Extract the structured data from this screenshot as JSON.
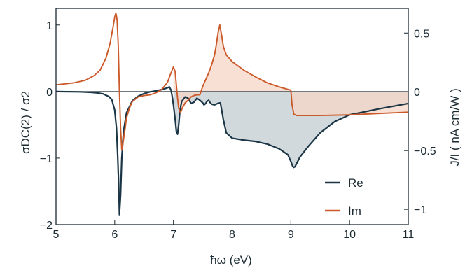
{
  "chart_data": {
    "type": "line",
    "xlabel": "ħω (eV)",
    "ylabel_left": "σDC(2) / σ2",
    "ylabel_right": "J/I ( nA cm/W )",
    "xlim": [
      5,
      11
    ],
    "ylim_left": [
      -2,
      1.25
    ],
    "ylim_right": [
      -1.13,
      0.71
    ],
    "x_ticks": [
      "5",
      "6",
      "7",
      "8",
      "9",
      "10",
      "11"
    ],
    "y_ticks_left": [
      "−2",
      "−1",
      "0",
      "1"
    ],
    "y_ticks_right": [
      "−1",
      "−0.5",
      "0",
      "0.5"
    ],
    "grid": false,
    "legend_position": "bottom-right",
    "zero_line": true,
    "fill_to_zero": "from x = 7.0 eV onward",
    "series": [
      {
        "name": "Re",
        "color": "#1a3545",
        "fill": "#c3ccd1",
        "x": [
          5.0,
          5.4,
          5.6,
          5.7,
          5.8,
          5.9,
          5.95,
          6.0,
          6.03,
          6.05,
          6.07,
          6.08,
          6.1,
          6.12,
          6.15,
          6.2,
          6.3,
          6.4,
          6.5,
          6.6,
          6.7,
          6.8,
          6.88,
          6.93,
          6.96,
          6.98,
          7.0,
          7.03,
          7.05,
          7.07,
          7.09,
          7.11,
          7.14,
          7.2,
          7.25,
          7.3,
          7.35,
          7.4,
          7.45,
          7.5,
          7.52,
          7.55,
          7.57,
          7.6,
          7.62,
          7.65,
          7.7,
          7.75,
          7.8,
          7.85,
          7.9,
          8.0,
          8.2,
          8.4,
          8.6,
          8.8,
          8.95,
          9.0,
          9.03,
          9.05,
          9.07,
          9.1,
          9.15,
          9.3,
          9.5,
          9.75,
          10.0,
          10.5,
          11.0
        ],
        "y": [
          0.0,
          -0.005,
          -0.012,
          -0.02,
          -0.035,
          -0.075,
          -0.12,
          -0.28,
          -0.55,
          -0.95,
          -1.45,
          -1.85,
          -1.55,
          -1.0,
          -0.6,
          -0.32,
          -0.14,
          -0.07,
          -0.03,
          -0.005,
          0.01,
          0.03,
          0.05,
          0.07,
          0.02,
          -0.08,
          -0.2,
          -0.42,
          -0.6,
          -0.64,
          -0.5,
          -0.3,
          -0.15,
          -0.08,
          -0.1,
          -0.18,
          -0.16,
          -0.1,
          -0.13,
          -0.17,
          -0.2,
          -0.18,
          -0.15,
          -0.13,
          -0.16,
          -0.19,
          -0.2,
          -0.18,
          -0.17,
          -0.42,
          -0.62,
          -0.7,
          -0.73,
          -0.75,
          -0.79,
          -0.86,
          -0.95,
          -1.05,
          -1.12,
          -1.14,
          -1.13,
          -1.08,
          -0.99,
          -0.82,
          -0.62,
          -0.45,
          -0.35,
          -0.26,
          -0.18
        ]
      },
      {
        "name": "Im",
        "color": "#cb5a2a",
        "fill": "#f6d5c7",
        "x": [
          5.0,
          5.3,
          5.5,
          5.65,
          5.75,
          5.85,
          5.92,
          5.97,
          6.0,
          6.02,
          6.04,
          6.06,
          6.08,
          6.1,
          6.12,
          6.14,
          6.17,
          6.2,
          6.25,
          6.3,
          6.4,
          6.5,
          6.6,
          6.7,
          6.8,
          6.9,
          6.95,
          7.0,
          7.03,
          7.05,
          7.07,
          7.09,
          7.12,
          7.15,
          7.2,
          7.25,
          7.3,
          7.35,
          7.4,
          7.45,
          7.5,
          7.55,
          7.6,
          7.65,
          7.7,
          7.73,
          7.76,
          7.79,
          7.82,
          7.85,
          7.9,
          8.0,
          8.2,
          8.4,
          8.6,
          8.8,
          9.0,
          9.02,
          9.05,
          9.1,
          9.5,
          10.0,
          10.5,
          11.0
        ],
        "y": [
          0.1,
          0.13,
          0.17,
          0.24,
          0.32,
          0.5,
          0.72,
          0.96,
          1.12,
          1.18,
          1.08,
          0.7,
          0.0,
          -0.55,
          -0.88,
          -0.78,
          -0.6,
          -0.4,
          -0.25,
          -0.15,
          -0.08,
          -0.06,
          -0.05,
          -0.02,
          0.03,
          0.14,
          0.26,
          0.37,
          0.3,
          0.1,
          -0.1,
          -0.25,
          -0.32,
          -0.25,
          -0.17,
          -0.13,
          -0.08,
          -0.06,
          -0.05,
          -0.05,
          0.08,
          0.18,
          0.28,
          0.4,
          0.55,
          0.7,
          0.88,
          1.0,
          0.85,
          0.68,
          0.55,
          0.45,
          0.32,
          0.22,
          0.13,
          0.07,
          0.02,
          -0.2,
          -0.34,
          -0.36,
          -0.36,
          -0.35,
          -0.33,
          -0.31
        ]
      }
    ]
  }
}
